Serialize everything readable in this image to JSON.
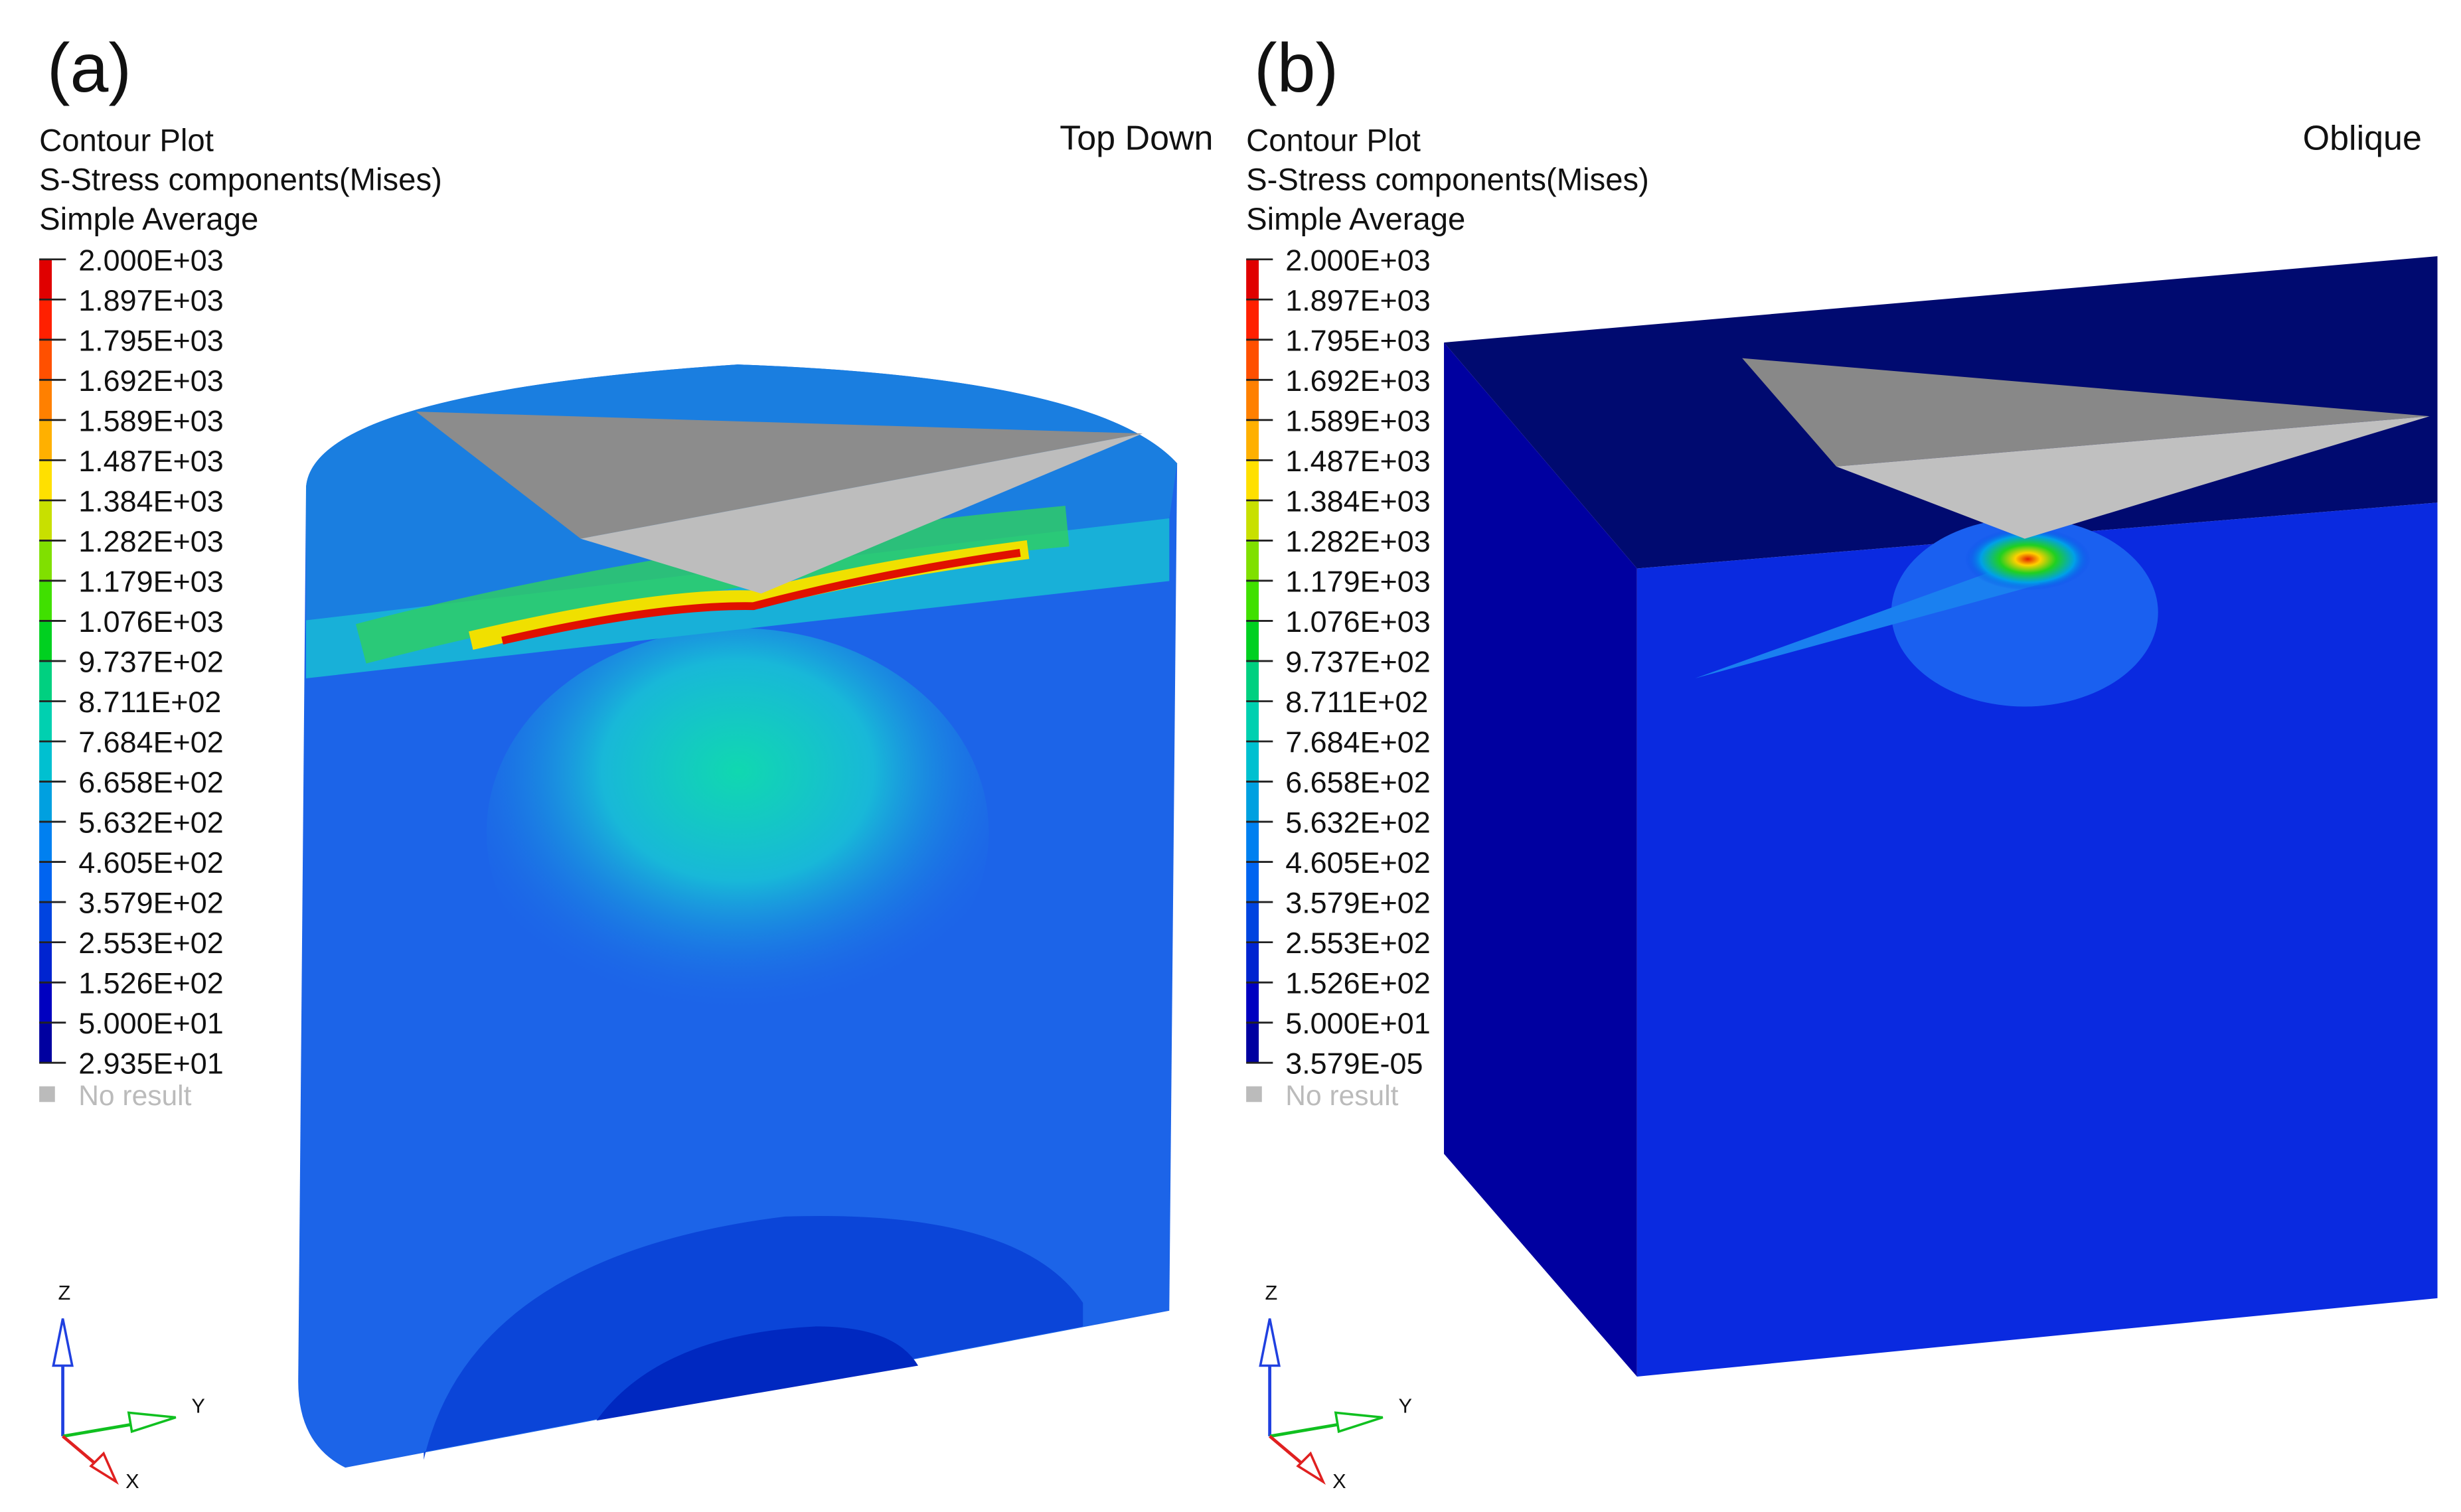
{
  "panels": [
    {
      "label": "(a)",
      "plot_title": "Contour Plot",
      "result": "S-Stress components(Mises)",
      "averaging": "Simple Average",
      "view": "Top Down",
      "legend": [
        "2.000E+03",
        "1.897E+03",
        "1.795E+03",
        "1.692E+03",
        "1.589E+03",
        "1.487E+03",
        "1.384E+03",
        "1.282E+03",
        "1.179E+03",
        "1.076E+03",
        "9.737E+02",
        "8.711E+02",
        "7.684E+02",
        "6.658E+02",
        "5.632E+02",
        "4.605E+02",
        "3.579E+02",
        "2.553E+02",
        "1.526E+02",
        "5.000E+01",
        "2.935E+01"
      ],
      "no_result": "No result",
      "axes": {
        "z": "Z",
        "y": "Y",
        "x": "X"
      }
    },
    {
      "label": "(b)",
      "plot_title": "Contour Plot",
      "result": "S-Stress components(Mises)",
      "averaging": "Simple Average",
      "view": "Oblique",
      "legend": [
        "2.000E+03",
        "1.897E+03",
        "1.795E+03",
        "1.692E+03",
        "1.589E+03",
        "1.487E+03",
        "1.384E+03",
        "1.282E+03",
        "1.179E+03",
        "1.076E+03",
        "9.737E+02",
        "8.711E+02",
        "7.684E+02",
        "6.658E+02",
        "5.632E+02",
        "4.605E+02",
        "3.579E+02",
        "2.553E+02",
        "1.526E+02",
        "5.000E+01",
        "3.579E-05"
      ],
      "no_result": "No result",
      "axes": {
        "z": "Z",
        "y": "Y",
        "x": "X"
      }
    }
  ]
}
